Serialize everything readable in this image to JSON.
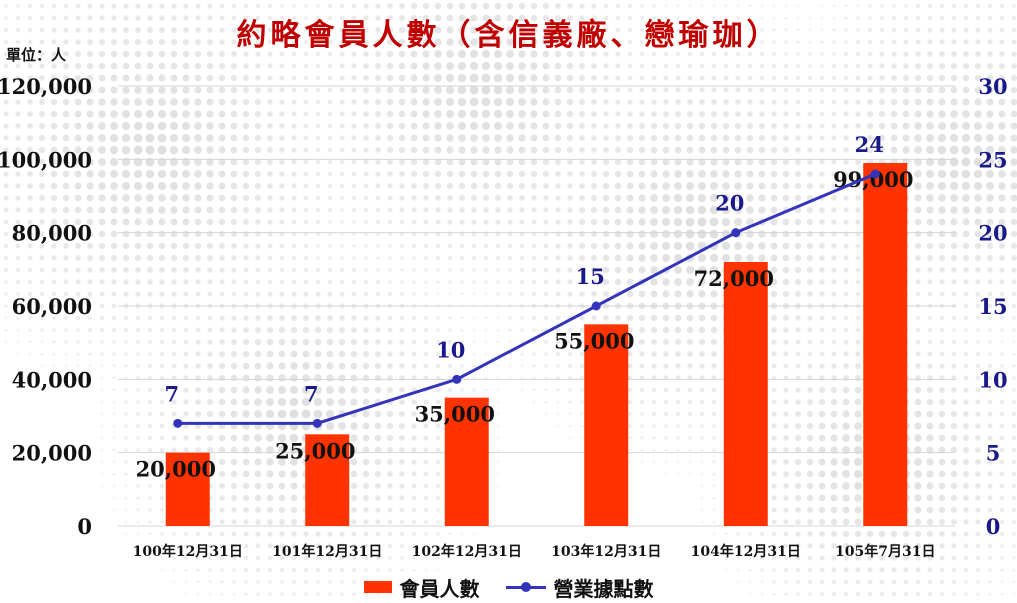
{
  "title": "約略會員人數（含信義廠、戀瑜珈）",
  "unit_label": "單位：人",
  "colors": {
    "bar": "#ff3300",
    "line": "#3333bb",
    "title": "#c00000",
    "right_axis": "#1a1a8a"
  },
  "legend": {
    "placement": "bottom-center"
  },
  "chart_data": {
    "type": "bar",
    "categories": [
      "100年12月31日",
      "101年12月31日",
      "102年12月31日",
      "103年12月31日",
      "104年12月31日",
      "105年7月31日"
    ],
    "series": [
      {
        "name": "會員人數",
        "type": "bar",
        "axis": "left",
        "values": [
          20000,
          25000,
          35000,
          55000,
          72000,
          99000
        ],
        "data_labels": [
          "20,000",
          "25,000",
          "35,000",
          "55,000",
          "72,000",
          "99,000"
        ]
      },
      {
        "name": "營業據點數",
        "type": "line",
        "axis": "right",
        "values": [
          7,
          7,
          10,
          15,
          20,
          24
        ],
        "data_labels": [
          "7",
          "7",
          "10",
          "15",
          "20",
          "24"
        ]
      }
    ],
    "y_left": {
      "range": [
        0,
        120000
      ],
      "ticks": [
        "0",
        "20,000",
        "40,000",
        "60,000",
        "80,000",
        "100,000",
        "120,000"
      ]
    },
    "y_right": {
      "range": [
        0,
        30
      ],
      "ticks": [
        "0",
        "5",
        "10",
        "15",
        "20",
        "25",
        "30"
      ]
    },
    "grid": true
  }
}
